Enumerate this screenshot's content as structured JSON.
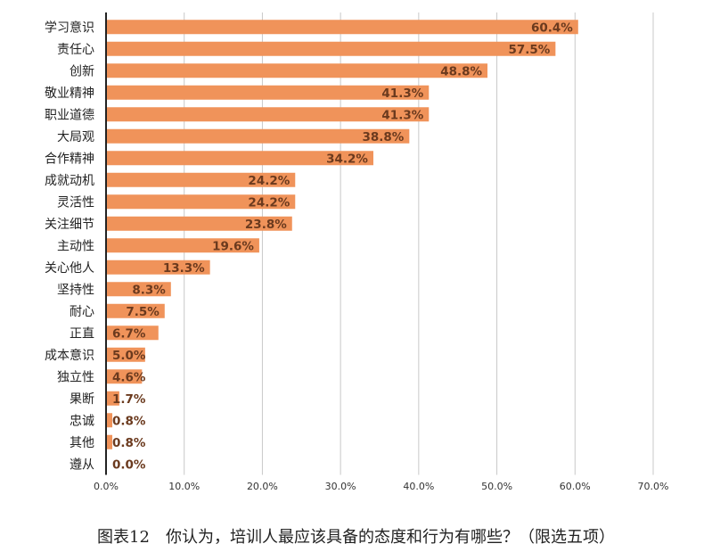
{
  "chart_data": {
    "type": "bar",
    "orientation": "horizontal",
    "categories": [
      "学习意识",
      "责任心",
      "创新",
      "敬业精神",
      "职业道德",
      "大局观",
      "合作精神",
      "成就动机",
      "灵活性",
      "关注细节",
      "主动性",
      "关心他人",
      "坚持性",
      "耐心",
      "正直",
      "成本意识",
      "独立性",
      "果断",
      "忠诚",
      "其他",
      "遵从"
    ],
    "values": [
      60.4,
      57.5,
      48.8,
      41.3,
      41.3,
      38.8,
      34.2,
      24.2,
      24.2,
      23.8,
      19.6,
      13.3,
      8.3,
      7.5,
      6.7,
      5.0,
      4.6,
      1.7,
      0.8,
      0.8,
      0.0
    ],
    "value_labels": [
      "60.4%",
      "57.5%",
      "48.8%",
      "41.3%",
      "41.3%",
      "38.8%",
      "34.2%",
      "24.2%",
      "24.2%",
      "23.8%",
      "19.6%",
      "13.3%",
      "8.3%",
      "7.5%",
      "6.7%",
      "5.0%",
      "4.6%",
      "1.7%",
      "0.8%",
      "0.8%",
      "0.0%"
    ],
    "xlim": [
      0,
      70
    ],
    "xticks": [
      "0.0%",
      "10.0%",
      "20.0%",
      "30.0%",
      "40.0%",
      "50.0%",
      "60.0%",
      "70.0%"
    ],
    "grid": true,
    "bar_color": "#f0935a",
    "label_color": "#6b3a1e"
  },
  "caption": "图表12　你认为，培训人最应该具备的态度和行为有哪些？（限选五项）"
}
